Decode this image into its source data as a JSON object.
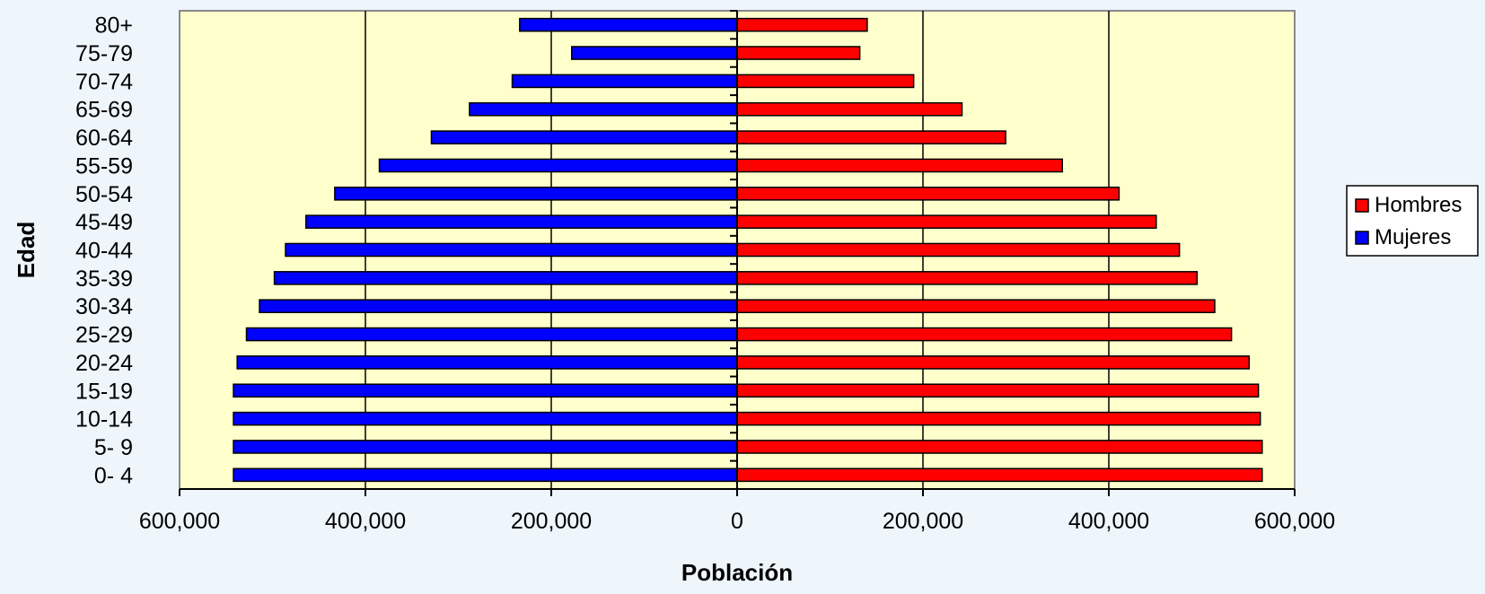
{
  "chart_data": {
    "type": "bar",
    "orientation": "horizontal",
    "title": "",
    "xlabel": "Población",
    "ylabel": "Edad",
    "categories": [
      "0- 4",
      "5- 9",
      "10-14",
      "15-19",
      "20-24",
      "25-29",
      "30-34",
      "35-39",
      "40-44",
      "45-49",
      "50-54",
      "55-59",
      "60-64",
      "65-69",
      "70-74",
      "75-79",
      "80+"
    ],
    "series": [
      {
        "name": "Hombres",
        "color": "#ff0000",
        "side": "right",
        "values": [
          565000,
          565000,
          563000,
          561000,
          551000,
          532000,
          514000,
          495000,
          476000,
          451000,
          411000,
          350000,
          289000,
          242000,
          190000,
          132000,
          140000
        ]
      },
      {
        "name": "Mujeres",
        "color": "#0000ff",
        "side": "left",
        "values": [
          542000,
          542000,
          542000,
          542000,
          538000,
          528000,
          514000,
          498000,
          486000,
          464000,
          433000,
          385000,
          329000,
          288000,
          242000,
          178000,
          234000
        ]
      }
    ],
    "xlim": [
      -600000,
      600000
    ],
    "xticks": [
      -600000,
      -400000,
      -200000,
      0,
      200000,
      400000,
      600000
    ],
    "xtick_labels": [
      "600,000",
      "400,000",
      "200,000",
      "0",
      "200,000",
      "400,000",
      "600,000"
    ],
    "grid": true,
    "legend_position": "right",
    "plot_background": "#ffffcc"
  }
}
